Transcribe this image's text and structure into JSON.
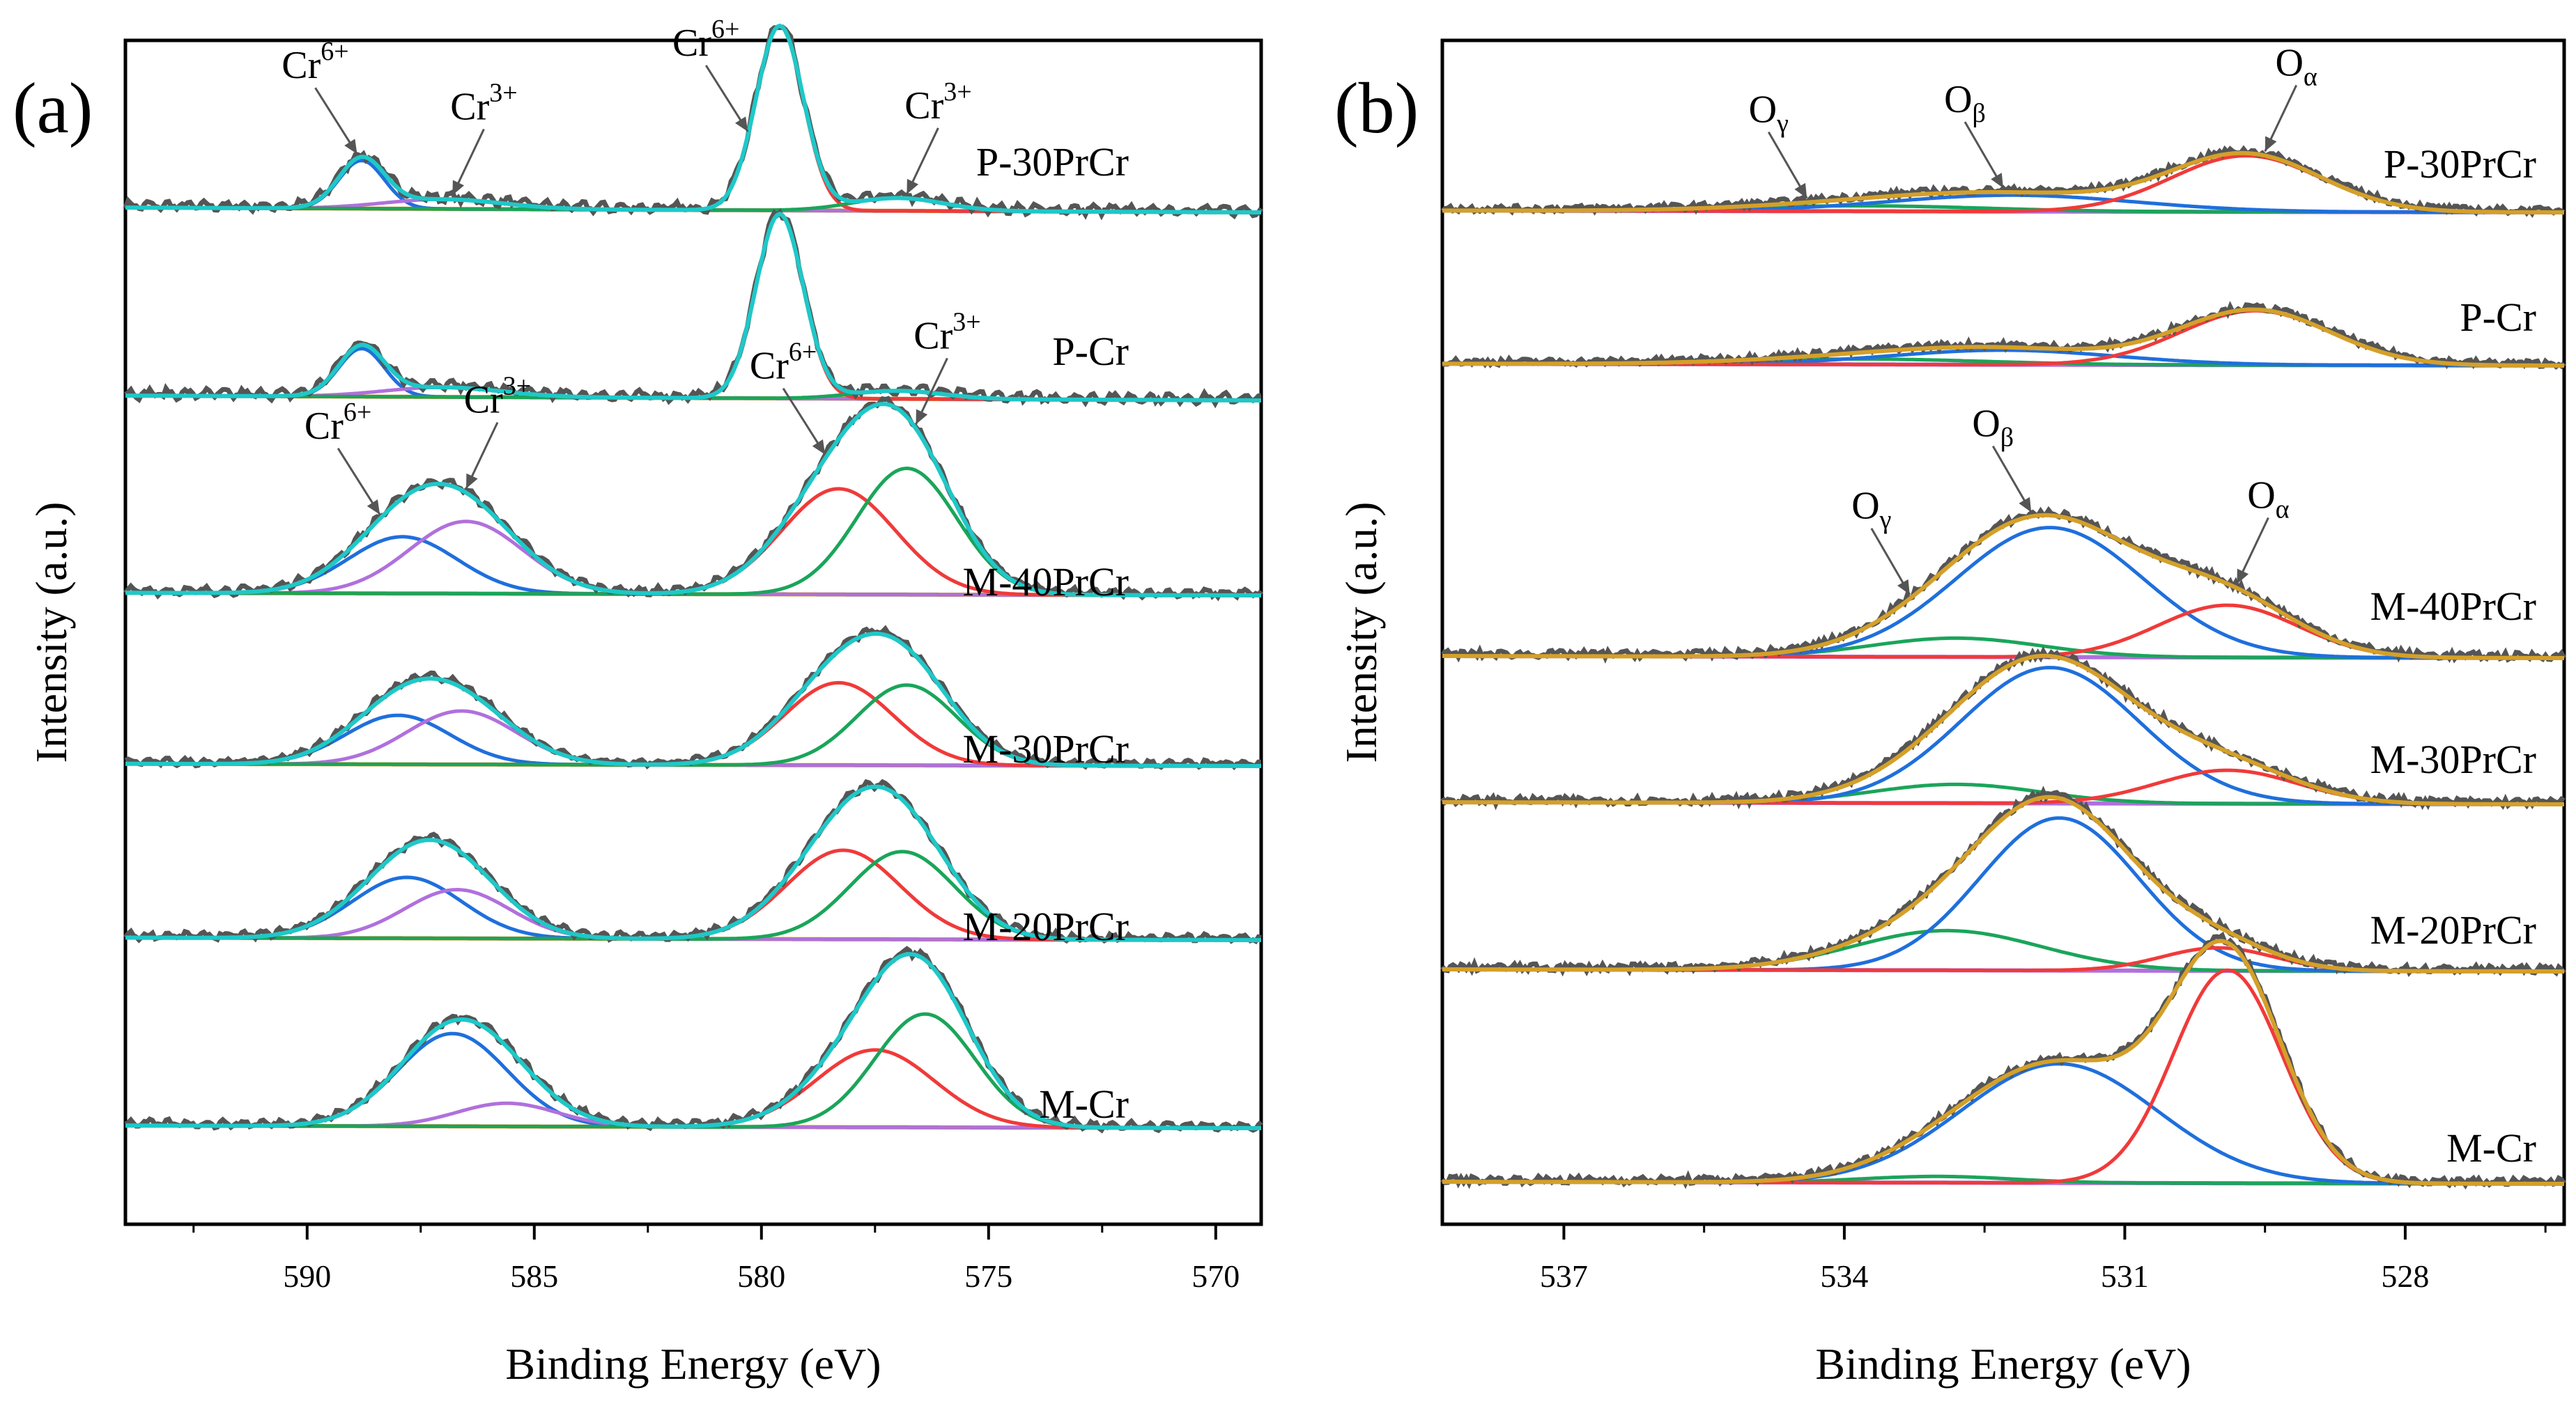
{
  "figure": {
    "panels": [
      {
        "id": "a",
        "label": "(a)"
      },
      {
        "id": "b",
        "label": "(b)"
      }
    ]
  },
  "chart_data": [
    {
      "type": "line",
      "panel_label": "(a)",
      "title": "",
      "xlabel": "Binding Energy (eV)",
      "ylabel": "Intensity (a.u.)",
      "xlim": [
        594,
        569
      ],
      "x_ticks": [
        590,
        585,
        580,
        575,
        570
      ],
      "x_tick_labels": [
        "590",
        "585",
        "580",
        "575",
        "570"
      ],
      "y_ticks": "none",
      "grid": false,
      "legend": "none",
      "series_roles": [
        "raw data",
        "fit envelope",
        "Cr6+ 2p1/2 component",
        "Cr3+ 2p1/2 component",
        "Cr6+ 2p3/2 component",
        "Cr3+ 2p3/2 component",
        "background"
      ],
      "colors": {
        "raw": "#555555",
        "envelope": "#1fc8c8",
        "blue": "#1f6fdc",
        "violet": "#b070dc",
        "red": "#f03a3a",
        "green": "#1aa55a",
        "background": "#d4a02a"
      },
      "samples": [
        {
          "name": "P-30PrCr",
          "offset": 0.95,
          "peaks": [
            {
              "role": "Cr6+ 2p1/2",
              "color": "blue",
              "center": 588.8,
              "height": 0.3,
              "width": 0.5
            },
            {
              "role": "Cr3+ 2p1/2",
              "color": "violet",
              "center": 587.0,
              "height": 0.06,
              "width": 1.3
            },
            {
              "role": "Cr6+ 2p3/2",
              "color": "red",
              "center": 579.6,
              "height": 1.15,
              "width": 0.52
            },
            {
              "role": "Cr3+ 2p3/2",
              "color": "green",
              "center": 577.0,
              "height": 0.08,
              "width": 1.0
            }
          ],
          "bg_slope": 0.03
        },
        {
          "name": "P-Cr",
          "offset": 0.0,
          "peaks": [
            {
              "role": "Cr6+ 2p1/2",
              "color": "blue",
              "center": 588.8,
              "height": 0.3,
              "width": 0.5
            },
            {
              "role": "Cr3+ 2p1/2",
              "color": "violet",
              "center": 587.0,
              "height": 0.06,
              "width": 1.3
            },
            {
              "role": "Cr6+ 2p3/2",
              "color": "red",
              "center": 579.6,
              "height": 1.15,
              "width": 0.52
            },
            {
              "role": "Cr3+ 2p3/2",
              "color": "green",
              "center": 577.0,
              "height": 0.05,
              "width": 1.0
            }
          ],
          "bg_slope": 0.03
        },
        {
          "name": "M-40PrCr",
          "offset": 0.0,
          "peaks": [
            {
              "role": "Cr6+ 2p1/2",
              "color": "blue",
              "center": 587.9,
              "height": 0.44,
              "width": 1.2
            },
            {
              "role": "Cr3+ 2p1/2",
              "color": "violet",
              "center": 586.5,
              "height": 0.56,
              "width": 1.25
            },
            {
              "role": "Cr6+ 2p3/2",
              "color": "red",
              "center": 578.3,
              "height": 0.82,
              "width": 1.25
            },
            {
              "role": "Cr3+ 2p3/2",
              "color": "green",
              "center": 576.8,
              "height": 0.98,
              "width": 1.1
            }
          ],
          "bg_slope": 0.02
        },
        {
          "name": "M-30PrCr",
          "offset": 0.0,
          "peaks": [
            {
              "role": "Cr6+ 2p1/2",
              "color": "blue",
              "center": 588.0,
              "height": 0.44,
              "width": 1.15
            },
            {
              "role": "Cr3+ 2p1/2",
              "color": "violet",
              "center": 586.6,
              "height": 0.48,
              "width": 1.2
            },
            {
              "role": "Cr6+ 2p3/2",
              "color": "red",
              "center": 578.3,
              "height": 0.74,
              "width": 1.2
            },
            {
              "role": "Cr3+ 2p3/2",
              "color": "green",
              "center": 576.8,
              "height": 0.72,
              "width": 1.1
            }
          ],
          "bg_slope": 0.02
        },
        {
          "name": "M-20PrCr",
          "offset": 0.0,
          "peaks": [
            {
              "role": "Cr6+ 2p1/2",
              "color": "blue",
              "center": 587.8,
              "height": 0.5,
              "width": 1.2
            },
            {
              "role": "Cr3+ 2p1/2",
              "color": "violet",
              "center": 586.7,
              "height": 0.4,
              "width": 1.15
            },
            {
              "role": "Cr6+ 2p3/2",
              "color": "red",
              "center": 578.2,
              "height": 0.73,
              "width": 1.25
            },
            {
              "role": "Cr3+ 2p3/2",
              "color": "green",
              "center": 576.9,
              "height": 0.72,
              "width": 1.15
            }
          ],
          "bg_slope": 0.02
        },
        {
          "name": "M-Cr",
          "offset": 0.0,
          "peaks": [
            {
              "role": "Cr6+ 2p1/2",
              "color": "blue",
              "center": 586.8,
              "height": 0.72,
              "width": 1.2
            },
            {
              "role": "Cr3+ 2p1/2",
              "color": "violet",
              "center": 585.6,
              "height": 0.18,
              "width": 1.1
            },
            {
              "role": "Cr6+ 2p3/2",
              "color": "red",
              "center": 577.5,
              "height": 0.6,
              "width": 1.3
            },
            {
              "role": "Cr3+ 2p3/2",
              "color": "green",
              "center": 576.4,
              "height": 0.88,
              "width": 1.1
            }
          ],
          "bg_slope": 0.02
        }
      ],
      "annotations": [
        {
          "text": "Cr",
          "sup": "6+",
          "sample": "P-30PrCr",
          "points_to_x": 588.9
        },
        {
          "text": "Cr",
          "sup": "3+",
          "sample": "P-30PrCr",
          "points_to_x": 586.8
        },
        {
          "text": "Cr",
          "sup": "6+",
          "sample": "P-30PrCr",
          "points_to_x": 580.3
        },
        {
          "text": "Cr",
          "sup": "3+",
          "sample": "P-30PrCr",
          "points_to_x": 576.8
        },
        {
          "text": "Cr",
          "sup": "6+",
          "sample": "M-40PrCr",
          "points_to_x": 588.4
        },
        {
          "text": "Cr",
          "sup": "3+",
          "sample": "M-40PrCr",
          "points_to_x": 586.5
        },
        {
          "text": "Cr",
          "sup": "6+",
          "sample": "M-40PrCr",
          "points_to_x": 578.6
        },
        {
          "text": "Cr",
          "sup": "3+",
          "sample": "M-40PrCr",
          "points_to_x": 576.6
        }
      ]
    },
    {
      "type": "line",
      "panel_label": "(b)",
      "title": "",
      "xlabel": "Binding Energy (eV)",
      "ylabel": "Intensity (a.u.)",
      "xlim": [
        538.3,
        526.3
      ],
      "x_ticks": [
        537,
        534,
        531,
        528
      ],
      "x_tick_labels": [
        "537",
        "534",
        "531",
        "528"
      ],
      "y_ticks": "none",
      "grid": false,
      "legend": "none",
      "series_roles": [
        "raw data",
        "fit envelope",
        "Oγ component",
        "Oβ component",
        "Oα component",
        "background"
      ],
      "colors": {
        "raw": "#555555",
        "envelope": "#d4a02a",
        "blue": "#1f6fdc",
        "violet": "#b070dc",
        "red": "#f03a3a",
        "green": "#1aa55a",
        "background": "#b070dc"
      },
      "samples": [
        {
          "name": "P-30PrCr",
          "peaks": [
            {
              "role": "Oγ",
              "color": "green",
              "center": 533.8,
              "height": 0.03,
              "width": 1.3
            },
            {
              "role": "Oβ",
              "color": "blue",
              "center": 532.2,
              "height": 0.09,
              "width": 1.3
            },
            {
              "role": "Oα",
              "color": "red",
              "center": 529.7,
              "height": 0.31,
              "width": 0.8
            }
          ],
          "bg_slope": 0.01
        },
        {
          "name": "P-Cr",
          "peaks": [
            {
              "role": "Oγ",
              "color": "green",
              "center": 533.8,
              "height": 0.03,
              "width": 1.3
            },
            {
              "role": "Oβ",
              "color": "blue",
              "center": 532.3,
              "height": 0.08,
              "width": 1.2
            },
            {
              "role": "Oα",
              "color": "red",
              "center": 529.6,
              "height": 0.3,
              "width": 0.8
            }
          ],
          "bg_slope": 0.01
        },
        {
          "name": "M-40PrCr",
          "peaks": [
            {
              "role": "Oγ",
              "color": "green",
              "center": 532.8,
              "height": 0.09,
              "width": 0.9
            },
            {
              "role": "Oβ",
              "color": "blue",
              "center": 531.8,
              "height": 0.62,
              "width": 1.0
            },
            {
              "role": "Oα",
              "color": "red",
              "center": 529.9,
              "height": 0.25,
              "width": 0.75
            }
          ],
          "bg_slope": 0.01
        },
        {
          "name": "M-30PrCr",
          "peaks": [
            {
              "role": "Oγ",
              "color": "green",
              "center": 532.8,
              "height": 0.09,
              "width": 0.9
            },
            {
              "role": "Oβ",
              "color": "blue",
              "center": 531.8,
              "height": 0.65,
              "width": 0.95
            },
            {
              "role": "Oα",
              "color": "red",
              "center": 529.9,
              "height": 0.16,
              "width": 0.75
            }
          ],
          "bg_slope": 0.01
        },
        {
          "name": "M-20PrCr",
          "peaks": [
            {
              "role": "Oγ",
              "color": "green",
              "center": 532.9,
              "height": 0.19,
              "width": 1.0
            },
            {
              "role": "Oβ",
              "color": "blue",
              "center": 531.7,
              "height": 0.73,
              "width": 0.85
            },
            {
              "role": "Oα",
              "color": "red",
              "center": 530.0,
              "height": 0.11,
              "width": 0.6
            }
          ],
          "bg_slope": 0.01
        },
        {
          "name": "M-Cr",
          "peaks": [
            {
              "role": "Oγ",
              "color": "green",
              "center": 533.0,
              "height": 0.03,
              "width": 0.8
            },
            {
              "role": "Oβ",
              "color": "blue",
              "center": 531.7,
              "height": 0.57,
              "width": 1.05
            },
            {
              "role": "Oα",
              "color": "red",
              "center": 529.9,
              "height": 1.02,
              "width": 0.58
            }
          ],
          "bg_slope": 0.01
        }
      ],
      "annotations": [
        {
          "text": "O",
          "sub": "γ",
          "sample": "P-30PrCr",
          "points_to_x": 534.4
        },
        {
          "text": "O",
          "sub": "β",
          "sample": "P-30PrCr",
          "points_to_x": 532.3
        },
        {
          "text": "O",
          "sub": "α",
          "sample": "P-30PrCr",
          "points_to_x": 529.5
        },
        {
          "text": "O",
          "sub": "γ",
          "sample": "M-40PrCr",
          "points_to_x": 533.3
        },
        {
          "text": "O",
          "sub": "β",
          "sample": "M-40PrCr",
          "points_to_x": 532.0
        },
        {
          "text": "O",
          "sub": "α",
          "sample": "M-40PrCr",
          "points_to_x": 529.8
        }
      ]
    }
  ]
}
